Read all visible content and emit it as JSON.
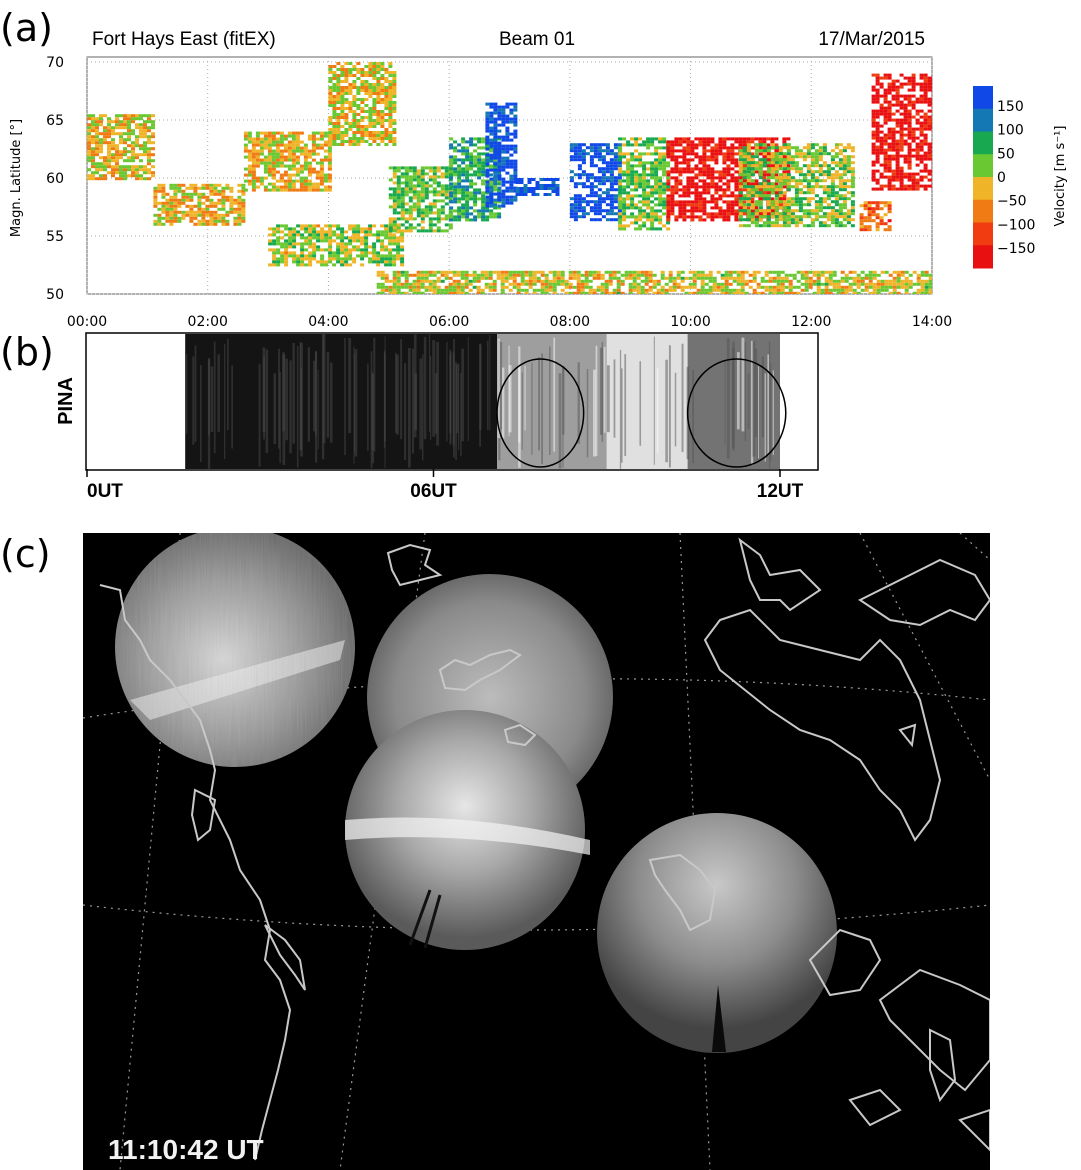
{
  "panels": {
    "a": {
      "letter": "(a)"
    },
    "b": {
      "letter": "(b)"
    },
    "c": {
      "letter": "(c)"
    }
  },
  "colors": {
    "background": "#ffffff",
    "map_background": "#000000",
    "coastline": "#c8c8c8",
    "scale": [
      "#1048e8",
      "#1478b4",
      "#18a850",
      "#6ac832",
      "#f0b428",
      "#f07a14",
      "#f03c10",
      "#e81010"
    ]
  },
  "chart_data": [
    {
      "type": "heatmap",
      "title": "Fort Hays East (fitEX)",
      "subtitle_center": "Beam 01",
      "subtitle_right": "17/Mar/2015",
      "xlabel": "",
      "ylabel": "Magn. Latitude [°]",
      "x_unit": "hours UT",
      "xlim": [
        0,
        14
      ],
      "ylim": [
        50,
        70
      ],
      "x_ticks": [
        "00:00",
        "02:00",
        "04:00",
        "06:00",
        "08:00",
        "10:00",
        "12:00",
        "14:00"
      ],
      "y_ticks": [
        "50",
        "55",
        "60",
        "65",
        "70"
      ],
      "grid": true,
      "colorbar": {
        "label": "Velocity [m s⁻¹]",
        "ticks": [
          "150",
          "100",
          "50",
          "0",
          "−50",
          "−100",
          "−150"
        ],
        "range": [
          -175,
          175
        ]
      },
      "regions": [
        {
          "x": [
            0.0,
            1.1
          ],
          "y": [
            60,
            65.5
          ],
          "velocity": -20
        },
        {
          "x": [
            1.1,
            2.6
          ],
          "y": [
            56,
            59.5
          ],
          "velocity": -25
        },
        {
          "x": [
            2.6,
            4.0
          ],
          "y": [
            59,
            64
          ],
          "velocity": -20
        },
        {
          "x": [
            4.0,
            5.1
          ],
          "y": [
            63,
            70
          ],
          "velocity": -15
        },
        {
          "x": [
            3.0,
            5.2
          ],
          "y": [
            52.5,
            56
          ],
          "velocity": 10
        },
        {
          "x": [
            5.0,
            6.0
          ],
          "y": [
            55.5,
            61
          ],
          "velocity": 30
        },
        {
          "x": [
            6.0,
            6.8
          ],
          "y": [
            56.5,
            63.5
          ],
          "velocity": 60
        },
        {
          "x": [
            6.6,
            7.1
          ],
          "y": [
            57.5,
            66.5
          ],
          "velocity": 160
        },
        {
          "x": [
            7.1,
            7.8
          ],
          "y": [
            58.5,
            60
          ],
          "velocity": 150
        },
        {
          "x": [
            8.0,
            8.8
          ],
          "y": [
            56.5,
            63
          ],
          "velocity": 155
        },
        {
          "x": [
            8.8,
            9.6
          ],
          "y": [
            55.5,
            63.5
          ],
          "velocity": 30
        },
        {
          "x": [
            9.6,
            11.6
          ],
          "y": [
            56.5,
            63.5
          ],
          "velocity": -155
        },
        {
          "x": [
            10.8,
            12.7
          ],
          "y": [
            56,
            63
          ],
          "velocity": 20
        },
        {
          "x": [
            13.0,
            14.0
          ],
          "y": [
            59,
            69
          ],
          "velocity": -160
        },
        {
          "x": [
            12.8,
            13.3
          ],
          "y": [
            55.5,
            58
          ],
          "velocity": -80
        },
        {
          "x": [
            4.8,
            14.0
          ],
          "y": [
            50,
            52
          ],
          "velocity": -10
        }
      ]
    },
    {
      "type": "heatmap",
      "ylabel": "PINA",
      "x_ticks": [
        "0UT",
        "06UT",
        "12UT"
      ],
      "xlim": [
        0,
        12
      ],
      "segments": [
        {
          "x": [
            0.0,
            1.7
          ],
          "brightness": 0.0
        },
        {
          "x": [
            1.7,
            7.1
          ],
          "brightness": 0.08
        },
        {
          "x": [
            7.1,
            9.0
          ],
          "brightness": 0.62
        },
        {
          "x": [
            9.0,
            10.4
          ],
          "brightness": 0.88
        },
        {
          "x": [
            10.4,
            12.0
          ],
          "brightness": 0.45
        }
      ],
      "highlighted_intervals": [
        [
          7.1,
          8.6
        ],
        [
          10.4,
          12.1
        ]
      ]
    }
  ],
  "map": {
    "timestamp": "11:10:42 UT"
  }
}
